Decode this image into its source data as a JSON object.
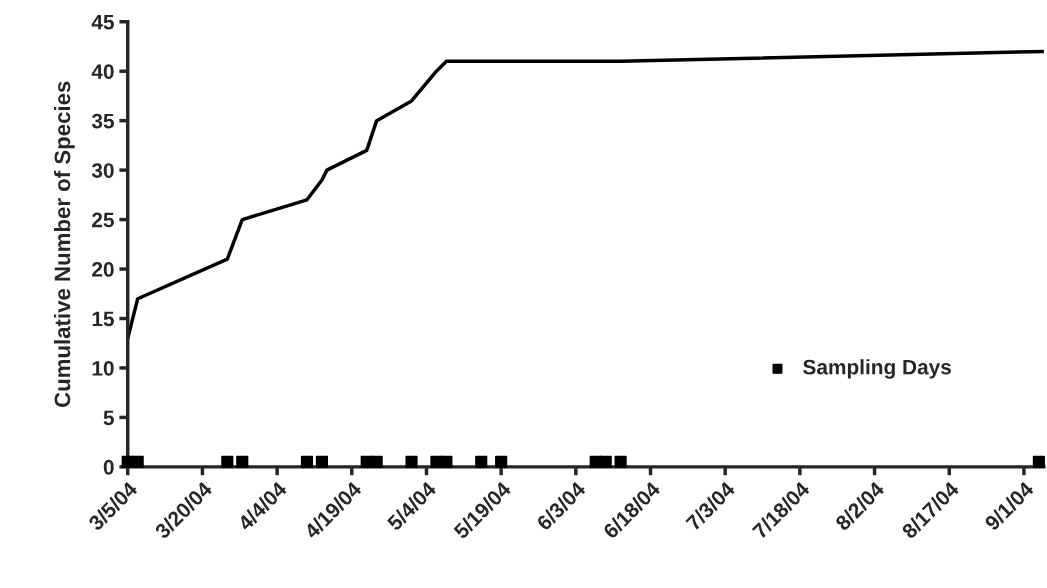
{
  "chart_data": {
    "type": "line",
    "ylabel": "Cumulative Number of Species",
    "xlim": [
      "2004-03-05",
      "2004-09-05"
    ],
    "ylim": [
      0,
      45
    ],
    "yticks": [
      0,
      5,
      10,
      15,
      20,
      25,
      30,
      35,
      40,
      45
    ],
    "xticks": [
      {
        "value": "2004-03-05",
        "label": "3/5/04"
      },
      {
        "value": "2004-03-20",
        "label": "3/20/04"
      },
      {
        "value": "2004-04-04",
        "label": "4/4/04"
      },
      {
        "value": "2004-04-19",
        "label": "4/19/04"
      },
      {
        "value": "2004-05-04",
        "label": "5/4/04"
      },
      {
        "value": "2004-05-19",
        "label": "5/19/04"
      },
      {
        "value": "2004-06-03",
        "label": "6/3/04"
      },
      {
        "value": "2004-06-18",
        "label": "6/18/04"
      },
      {
        "value": "2004-07-03",
        "label": "7/3/04"
      },
      {
        "value": "2004-07-18",
        "label": "7/18/04"
      },
      {
        "value": "2004-08-02",
        "label": "8/2/04"
      },
      {
        "value": "2004-08-17",
        "label": "8/17/04"
      },
      {
        "value": "2004-09-01",
        "label": "9/1/04"
      }
    ],
    "grid": false,
    "legend": "right",
    "series": [
      {
        "color": "#000000",
        "marker": "none",
        "line_style": "solid",
        "x": [
          "2004-03-05",
          "2004-03-07",
          "2004-03-25",
          "2004-03-28",
          "2004-04-10",
          "2004-04-13",
          "2004-04-14",
          "2004-04-22",
          "2004-04-24",
          "2004-05-01",
          "2004-05-06",
          "2004-05-08",
          "2004-06-12",
          "2004-09-05"
        ],
        "values": [
          13,
          17,
          21,
          25,
          27,
          29,
          30,
          32,
          35,
          37,
          40,
          41,
          41,
          42
        ]
      },
      {
        "type": "scatter",
        "name": "Sampling Days",
        "color": "#000000",
        "marker": "square",
        "x": [
          "2004-03-05",
          "2004-03-07",
          "2004-03-25",
          "2004-03-28",
          "2004-04-10",
          "2004-04-13",
          "2004-04-22",
          "2004-04-24",
          "2004-05-01",
          "2004-05-06",
          "2004-05-08",
          "2004-05-15",
          "2004-05-19",
          "2004-06-07",
          "2004-06-09",
          "2004-06-12",
          "2004-09-04"
        ],
        "values": [
          0.5,
          0.5,
          0.5,
          0.5,
          0.5,
          0.5,
          0.5,
          0.5,
          0.5,
          0.5,
          0.5,
          0.5,
          0.5,
          0.5,
          0.5,
          0.5,
          0.5
        ]
      }
    ]
  }
}
